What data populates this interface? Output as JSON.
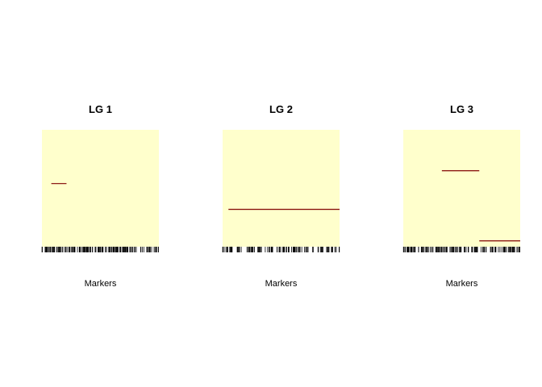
{
  "colors": {
    "background": "#ffffff",
    "plot_fill": "#ffffcc",
    "segment": "#800000",
    "rug": "#000000",
    "text": "#000000"
  },
  "chart_data": [
    {
      "type": "heatmap",
      "title": "LG 1",
      "xlabel": "Markers",
      "ylabel": "",
      "xlim": [
        0,
        1
      ],
      "ylim": [
        0,
        1
      ],
      "segments": [
        {
          "x0": 0.08,
          "x1": 0.21,
          "y": 0.54
        }
      ],
      "rug_seed": 11,
      "rug_count": 150
    },
    {
      "type": "heatmap",
      "title": "LG 2",
      "xlabel": "Markers",
      "ylabel": "",
      "xlim": [
        0,
        1
      ],
      "ylim": [
        0,
        1
      ],
      "segments": [
        {
          "x0": 0.05,
          "x1": 1.0,
          "y": 0.32
        }
      ],
      "rug_seed": 23,
      "rug_count": 120
    },
    {
      "type": "heatmap",
      "title": "LG 3",
      "xlabel": "Markers",
      "ylabel": "",
      "xlim": [
        0,
        1
      ],
      "ylim": [
        0,
        1
      ],
      "segments": [
        {
          "x0": 0.33,
          "x1": 0.65,
          "y": 0.65
        },
        {
          "x0": 0.65,
          "x1": 1.0,
          "y": 0.05
        }
      ],
      "rug_seed": 37,
      "rug_count": 150
    }
  ]
}
